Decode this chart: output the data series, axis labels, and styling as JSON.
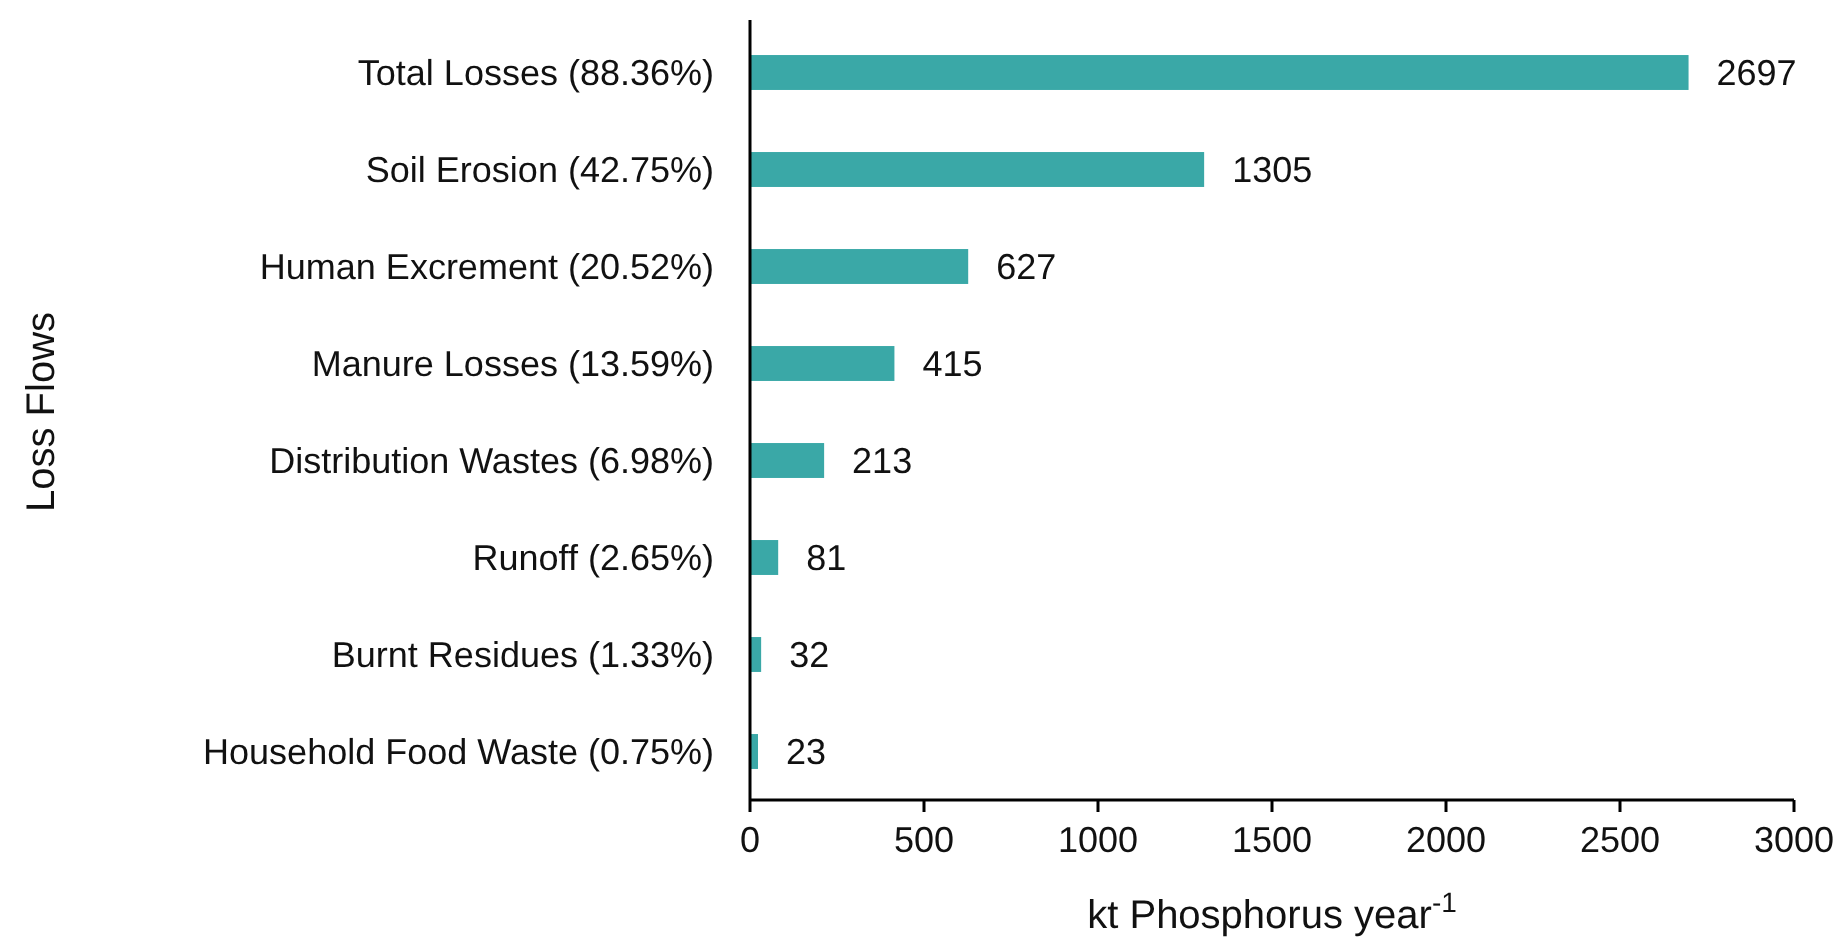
{
  "chart_data": {
    "type": "bar",
    "orientation": "horizontal",
    "categories": [
      "Total Losses (88.36%)",
      "Soil Erosion (42.75%)",
      "Human Excrement (20.52%)",
      "Manure Losses (13.59%)",
      "Distribution Wastes (6.98%)",
      "Runoff (2.65%)",
      "Burnt Residues (1.33%)",
      "Household Food Waste (0.75%)"
    ],
    "values": [
      2697,
      1305,
      627,
      415,
      213,
      81,
      32,
      23
    ],
    "color": "#3aa8a7",
    "xlim": [
      0,
      3000
    ],
    "xticks": [
      0,
      500,
      1000,
      1500,
      2000,
      2500,
      3000
    ],
    "xlabel": "kt Phosphorus year$^{-1}$",
    "ylabel": "Loss Flows",
    "data_labels": true
  }
}
